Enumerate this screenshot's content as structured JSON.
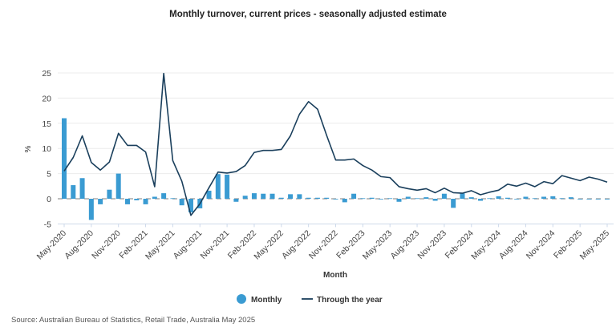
{
  "chart_data": {
    "type": "bar+line",
    "title": "Monthly turnover, current prices - seasonally adjusted estimate",
    "xlabel": "Month",
    "ylabel": "%",
    "ylim": [
      -5,
      25
    ],
    "yticks": [
      -5,
      0,
      5,
      10,
      15,
      20,
      25
    ],
    "grid": true,
    "legend_position": "bottom",
    "start_month": "May-2020",
    "x": [
      "May-2020",
      "Jun-2020",
      "Jul-2020",
      "Aug-2020",
      "Sep-2020",
      "Oct-2020",
      "Nov-2020",
      "Dec-2020",
      "Jan-2021",
      "Feb-2021",
      "Mar-2021",
      "Apr-2021",
      "May-2021",
      "Jun-2021",
      "Jul-2021",
      "Aug-2021",
      "Sep-2021",
      "Oct-2021",
      "Nov-2021",
      "Dec-2021",
      "Jan-2022",
      "Feb-2022",
      "Mar-2022",
      "Apr-2022",
      "May-2022",
      "Jun-2022",
      "Jul-2022",
      "Aug-2022",
      "Sep-2022",
      "Oct-2022",
      "Nov-2022",
      "Dec-2022",
      "Jan-2023",
      "Feb-2023",
      "Mar-2023",
      "Apr-2023",
      "May-2023",
      "Jun-2023",
      "Jul-2023",
      "Aug-2023",
      "Sep-2023",
      "Oct-2023",
      "Nov-2023",
      "Dec-2023",
      "Jan-2024",
      "Feb-2024",
      "Mar-2024",
      "Apr-2024",
      "May-2024",
      "Jun-2024",
      "Jul-2024",
      "Aug-2024",
      "Sep-2024",
      "Oct-2024",
      "Nov-2024",
      "Dec-2024",
      "Jan-2025",
      "Feb-2025",
      "Mar-2025",
      "Apr-2025",
      "May-2025"
    ],
    "tick_labels": [
      "May-2020",
      "Aug-2020",
      "Nov-2020",
      "Feb-2021",
      "May-2021",
      "Aug-2021",
      "Nov-2021",
      "Feb-2022",
      "May-2022",
      "Aug-2022",
      "Nov-2022",
      "Feb-2023",
      "May-2023",
      "Aug-2023",
      "Nov-2023",
      "Feb-2024",
      "May-2024",
      "Aug-2024",
      "Nov-2024",
      "Feb-2025",
      "May-2025"
    ],
    "series": [
      {
        "name": "Monthly",
        "type": "bar",
        "color": "#3a9bd2",
        "values": [
          16.0,
          2.7,
          4.1,
          -4.2,
          -1.1,
          1.8,
          5.0,
          -1.1,
          -0.3,
          -1.1,
          0.4,
          1.1,
          0.1,
          -1.3,
          -2.7,
          -1.9,
          1.6,
          4.9,
          4.8,
          -0.6,
          0.6,
          1.1,
          1.0,
          1.0,
          0.2,
          0.9,
          0.9,
          0.2,
          0.2,
          0.2,
          0.0,
          -0.7,
          1.0,
          0.1,
          0.2,
          0.0,
          0.1,
          -0.6,
          0.4,
          0.1,
          0.3,
          -0.4,
          1.0,
          -1.8,
          1.1,
          0.3,
          -0.4,
          0.1,
          0.5,
          0.2,
          0.0,
          0.4,
          0.1,
          0.4,
          0.5,
          0.1,
          0.3,
          0.0,
          0.0,
          0.0,
          0.0
        ]
      },
      {
        "name": "Through the year",
        "type": "line",
        "color": "#1a3f5c",
        "values": [
          5.5,
          8.2,
          12.5,
          7.2,
          5.7,
          7.3,
          13.0,
          10.6,
          10.6,
          9.3,
          2.4,
          24.9,
          7.6,
          3.5,
          -3.3,
          -1.0,
          2.2,
          5.3,
          5.1,
          5.4,
          6.6,
          9.2,
          9.6,
          9.6,
          9.8,
          12.5,
          16.8,
          19.3,
          17.8,
          12.6,
          7.7,
          7.7,
          7.9,
          6.6,
          5.7,
          4.4,
          4.2,
          2.4,
          2.0,
          1.7,
          2.0,
          1.2,
          2.1,
          1.2,
          1.1,
          1.6,
          0.8,
          1.3,
          1.7,
          2.9,
          2.5,
          3.1,
          2.4,
          3.4,
          3.0,
          4.6,
          4.1,
          3.6,
          4.3,
          3.9,
          3.3
        ]
      }
    ],
    "source": "Source: Australian Bureau of Statistics, Retail Trade, Australia May 2025"
  }
}
